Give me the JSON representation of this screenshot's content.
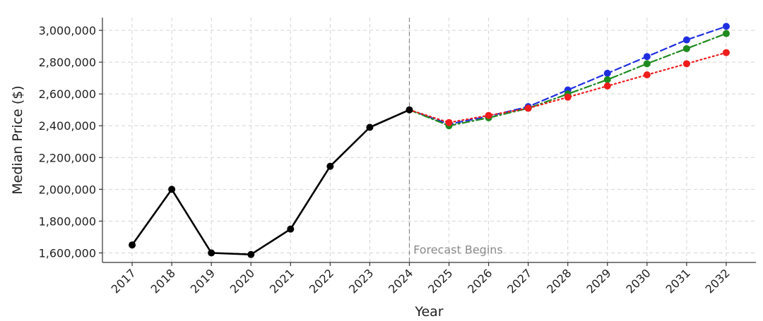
{
  "chart_data": {
    "type": "line",
    "title": "",
    "xlabel": "Year",
    "ylabel": "Median Price ($)",
    "x": [
      2017,
      2018,
      2019,
      2020,
      2021,
      2022,
      2023,
      2024,
      2025,
      2026,
      2027,
      2028,
      2029,
      2030,
      2031,
      2032
    ],
    "xlim": [
      2016.25,
      2032.75
    ],
    "ylim": [
      1540000,
      3080000
    ],
    "yticks": [
      1600000,
      1800000,
      2000000,
      2200000,
      2400000,
      2600000,
      2800000,
      3000000
    ],
    "ytick_labels": [
      "1,600,000",
      "1,800,000",
      "2,000,000",
      "2,200,000",
      "2,400,000",
      "2,600,000",
      "2,800,000",
      "3,000,000"
    ],
    "xtick_labels": [
      "2017",
      "2018",
      "2019",
      "2020",
      "2021",
      "2022",
      "2023",
      "2024",
      "2025",
      "2026",
      "2027",
      "2028",
      "2029",
      "2030",
      "2031",
      "2032"
    ],
    "grid": true,
    "legend": "none",
    "series": [
      {
        "color": "#000000",
        "style": "solid",
        "x": [
          2017,
          2018,
          2019,
          2020,
          2021,
          2022,
          2023,
          2024
        ],
        "values": [
          1650000,
          2000000,
          1600000,
          1590000,
          1750000,
          2145000,
          2390000,
          2500000
        ]
      },
      {
        "color": "#1f2fe0",
        "style": "dashed",
        "x": [
          2024,
          2025,
          2026,
          2027,
          2028,
          2029,
          2030,
          2031,
          2032
        ],
        "values": [
          2500000,
          2410000,
          2460000,
          2520000,
          2625000,
          2730000,
          2835000,
          2940000,
          3025000
        ]
      },
      {
        "color": "#1e8a1e",
        "style": "dashdot",
        "x": [
          2024,
          2025,
          2026,
          2027,
          2028,
          2029,
          2030,
          2031,
          2032
        ],
        "values": [
          2500000,
          2400000,
          2450000,
          2510000,
          2600000,
          2690000,
          2790000,
          2885000,
          2980000
        ]
      },
      {
        "color": "#ee1c1c",
        "style": "dotted",
        "x": [
          2024,
          2025,
          2026,
          2027,
          2028,
          2029,
          2030,
          2031,
          2032
        ],
        "values": [
          2500000,
          2420000,
          2465000,
          2510000,
          2580000,
          2650000,
          2720000,
          2790000,
          2860000
        ]
      }
    ],
    "annotations": [
      {
        "type": "vline",
        "x": 2024,
        "color": "#8a8a8a",
        "style": "dashed"
      },
      {
        "type": "text",
        "text": "Forecast Begins",
        "x": 2024.1,
        "y": 1600000,
        "color": "#8a8a8a"
      }
    ]
  }
}
